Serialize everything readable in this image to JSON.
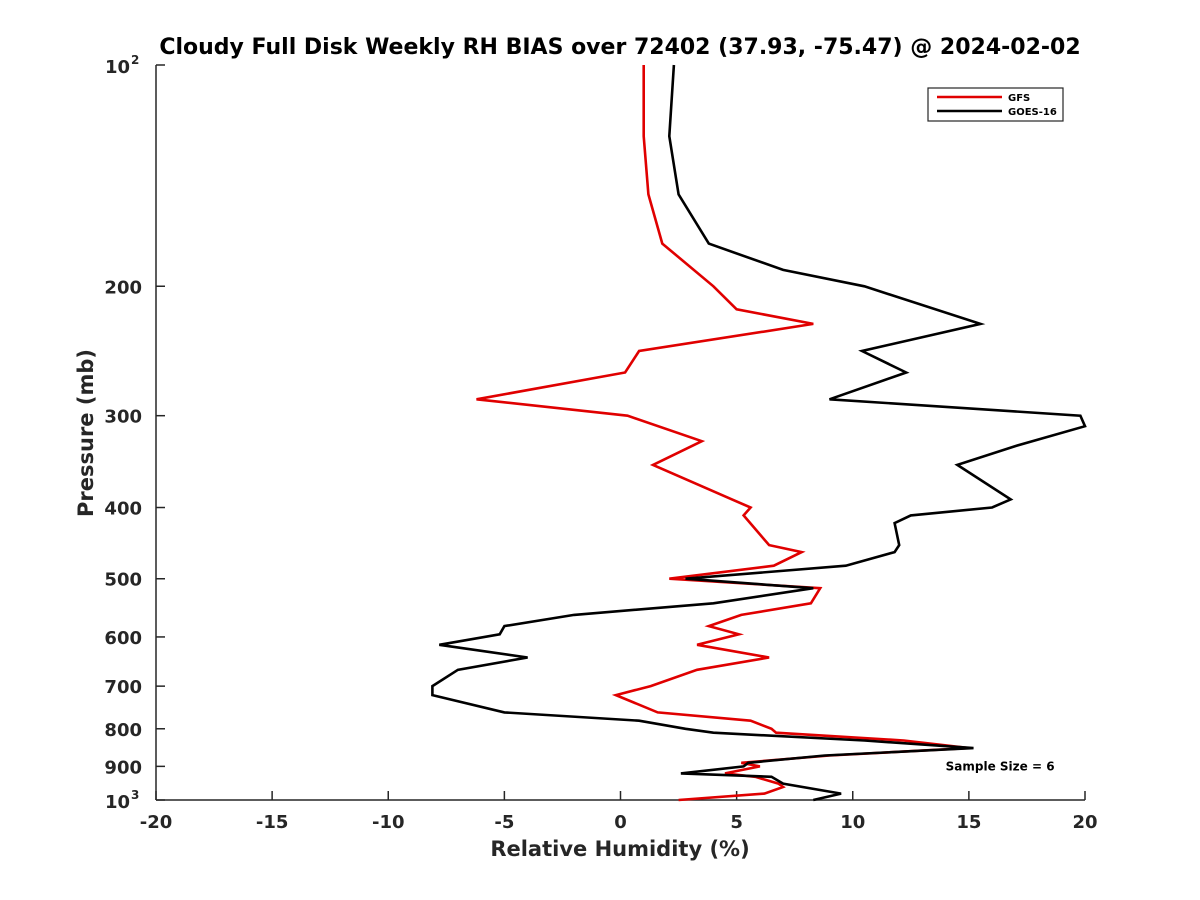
{
  "chart_data": {
    "type": "line",
    "title": "Cloudy Full Disk Weekly RH BIAS over 72402 (37.93, -75.47) @ 2024-02-02",
    "xlabel": "Relative Humidity (%)",
    "ylabel": "Pressure (mb)",
    "xlim": [
      -20,
      20
    ],
    "ylim": [
      100,
      1000
    ],
    "y_scale": "log",
    "y_reversed": true,
    "grid": false,
    "legend_position": "top-right",
    "x_ticks": [
      {
        "value": -20,
        "label": "-20"
      },
      {
        "value": -15,
        "label": "-15"
      },
      {
        "value": -10,
        "label": "-10"
      },
      {
        "value": -5,
        "label": "-5"
      },
      {
        "value": 0,
        "label": "0"
      },
      {
        "value": 5,
        "label": "5"
      },
      {
        "value": 10,
        "label": "10"
      },
      {
        "value": 15,
        "label": "15"
      },
      {
        "value": 20,
        "label": "20"
      }
    ],
    "y_ticks": [
      {
        "value": 100,
        "base": "10",
        "exp": "2"
      },
      {
        "value": 200,
        "label": "200"
      },
      {
        "value": 300,
        "label": "300"
      },
      {
        "value": 400,
        "label": "400"
      },
      {
        "value": 500,
        "label": "500"
      },
      {
        "value": 600,
        "label": "600"
      },
      {
        "value": 700,
        "label": "700"
      },
      {
        "value": 800,
        "label": "800"
      },
      {
        "value": 900,
        "label": "900"
      },
      {
        "value": 1000,
        "base": "10",
        "exp": "3"
      }
    ],
    "series": [
      {
        "name": "GFS",
        "color": "#e00000",
        "points": [
          [
            1.0,
            100
          ],
          [
            1.0,
            125
          ],
          [
            1.2,
            150
          ],
          [
            1.8,
            175
          ],
          [
            4.0,
            200
          ],
          [
            5.0,
            215
          ],
          [
            8.3,
            225
          ],
          [
            0.8,
            245
          ],
          [
            0.2,
            262
          ],
          [
            -6.2,
            285
          ],
          [
            0.3,
            300
          ],
          [
            3.5,
            325
          ],
          [
            1.4,
            350
          ],
          [
            4.8,
            390
          ],
          [
            5.6,
            400
          ],
          [
            5.3,
            410
          ],
          [
            6.4,
            450
          ],
          [
            7.8,
            460
          ],
          [
            6.6,
            480
          ],
          [
            2.1,
            500
          ],
          [
            8.6,
            515
          ],
          [
            8.2,
            540
          ],
          [
            5.2,
            560
          ],
          [
            3.8,
            580
          ],
          [
            5.1,
            595
          ],
          [
            3.3,
            615
          ],
          [
            6.4,
            640
          ],
          [
            3.3,
            665
          ],
          [
            1.3,
            700
          ],
          [
            -0.2,
            720
          ],
          [
            1.6,
            760
          ],
          [
            5.6,
            780
          ],
          [
            6.5,
            800
          ],
          [
            6.7,
            810
          ],
          [
            12.2,
            830
          ],
          [
            15.0,
            850
          ],
          [
            9.0,
            870
          ],
          [
            5.2,
            890
          ],
          [
            6.0,
            900
          ],
          [
            4.5,
            920
          ],
          [
            5.8,
            930
          ],
          [
            6.8,
            950
          ],
          [
            7.0,
            960
          ],
          [
            6.2,
            980
          ],
          [
            2.5,
            1000
          ]
        ]
      },
      {
        "name": "GOES-16",
        "color": "#000000",
        "points": [
          [
            2.3,
            100
          ],
          [
            2.1,
            125
          ],
          [
            2.5,
            150
          ],
          [
            3.8,
            175
          ],
          [
            7.0,
            190
          ],
          [
            10.5,
            200
          ],
          [
            15.5,
            225
          ],
          [
            10.4,
            245
          ],
          [
            12.3,
            262
          ],
          [
            9.0,
            285
          ],
          [
            19.8,
            300
          ],
          [
            20.0,
            310
          ],
          [
            17.0,
            330
          ],
          [
            14.5,
            350
          ],
          [
            16.8,
            390
          ],
          [
            16.0,
            400
          ],
          [
            12.5,
            410
          ],
          [
            11.8,
            420
          ],
          [
            12.0,
            450
          ],
          [
            11.8,
            460
          ],
          [
            9.7,
            480
          ],
          [
            2.8,
            500
          ],
          [
            8.3,
            515
          ],
          [
            4.0,
            540
          ],
          [
            -2.0,
            560
          ],
          [
            -5.0,
            580
          ],
          [
            -5.2,
            595
          ],
          [
            -7.8,
            615
          ],
          [
            -4.0,
            640
          ],
          [
            -7.0,
            665
          ],
          [
            -8.1,
            700
          ],
          [
            -8.1,
            720
          ],
          [
            -5.0,
            760
          ],
          [
            0.8,
            780
          ],
          [
            2.8,
            800
          ],
          [
            4.0,
            810
          ],
          [
            10.5,
            830
          ],
          [
            15.2,
            850
          ],
          [
            8.8,
            870
          ],
          [
            5.5,
            890
          ],
          [
            5.3,
            900
          ],
          [
            2.6,
            920
          ],
          [
            6.5,
            930
          ],
          [
            7.0,
            950
          ],
          [
            9.5,
            980
          ],
          [
            8.3,
            1000
          ]
        ]
      }
    ],
    "annotations": [
      {
        "text": "Sample Size = 6",
        "x": 14.0,
        "y": 900
      }
    ]
  }
}
